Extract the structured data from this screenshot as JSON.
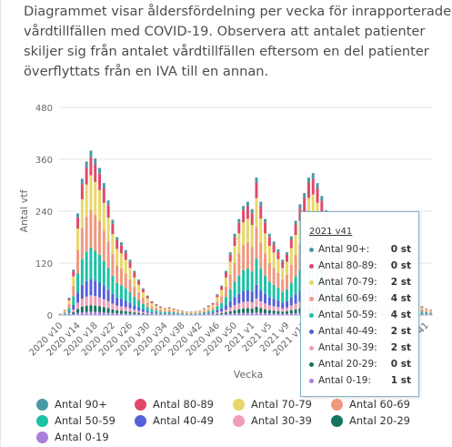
{
  "description": [
    "Diagrammet visar åldersfördelning per vecka för inrapporterade",
    "vårdtillfällen med COVID-19. Observera att antalet patienter",
    "skiljer sig från antalet vårdtillfällen eftersom en del patienter",
    "överflyttats från en IVA till en annan."
  ],
  "tooltip": {
    "title": "2021 v41",
    "rows": [
      {
        "label": "Antal 90+:",
        "value": "0 st",
        "color": "#4a9aa5"
      },
      {
        "label": "Antal 80-89:",
        "value": "0 st",
        "color": "#e0486b"
      },
      {
        "label": "Antal 70-79:",
        "value": "2 st",
        "color": "#e8d76a"
      },
      {
        "label": "Antal 60-69:",
        "value": "4 st",
        "color": "#f0987e"
      },
      {
        "label": "Antal 50-59:",
        "value": "4 st",
        "color": "#1bc2a5"
      },
      {
        "label": "Antal 40-49:",
        "value": "2 st",
        "color": "#5460d9"
      },
      {
        "label": "Antal 30-39:",
        "value": "2 st",
        "color": "#ee9eb7"
      },
      {
        "label": "Antal 20-29:",
        "value": "0 st",
        "color": "#16735e"
      },
      {
        "label": "Antal 0-19:",
        "value": "1 st",
        "color": "#a87fd9"
      }
    ]
  },
  "chart_data": {
    "type": "bar",
    "stacked": true,
    "title": "",
    "xlabel": "Vecka",
    "ylabel": "Antal vtf",
    "ylim": [
      0,
      480
    ],
    "yticks": [
      0,
      120,
      240,
      360,
      480
    ],
    "grid": true,
    "legend_position": "bottom",
    "x_tick_labels": [
      "2020 v10",
      "2020 v14",
      "2020 v18",
      "2020 v22",
      "2020 v26",
      "2020 v30",
      "2020 v34",
      "2020 v38",
      "2020 v42",
      "2020 v46",
      "2020 v50",
      "2021 v1",
      "2021 v5",
      "2021 v9",
      "2021 v13",
      "",
      "",
      "",
      "",
      "",
      "",
      "2021 v41"
    ],
    "categories": [
      "2020 v10",
      "2020 v11",
      "2020 v12",
      "2020 v13",
      "2020 v14",
      "2020 v15",
      "2020 v16",
      "2020 v17",
      "2020 v18",
      "2020 v19",
      "2020 v20",
      "2020 v21",
      "2020 v22",
      "2020 v23",
      "2020 v24",
      "2020 v25",
      "2020 v26",
      "2020 v27",
      "2020 v28",
      "2020 v29",
      "2020 v30",
      "2020 v31",
      "2020 v32",
      "2020 v33",
      "2020 v34",
      "2020 v35",
      "2020 v36",
      "2020 v37",
      "2020 v38",
      "2020 v39",
      "2020 v40",
      "2020 v41",
      "2020 v42",
      "2020 v43",
      "2020 v44",
      "2020 v45",
      "2020 v46",
      "2020 v47",
      "2020 v48",
      "2020 v49",
      "2020 v50",
      "2020 v51",
      "2020 v52",
      "2020 v53",
      "2021 v1",
      "2021 v2",
      "2021 v3",
      "2021 v4",
      "2021 v5",
      "2021 v6",
      "2021 v7",
      "2021 v8",
      "2021 v9",
      "2021 v10",
      "2021 v11",
      "2021 v12",
      "2021 v13",
      "2021 v14",
      "2021 v15",
      "2021 v16",
      "2021 v17",
      "2021 v18",
      "2021 v19",
      "2021 v20",
      "2021 v21",
      "2021 v22",
      "2021 v23",
      "2021 v24",
      "2021 v25",
      "2021 v26",
      "2021 v27",
      "2021 v28",
      "2021 v29",
      "2021 v30",
      "2021 v31",
      "2021 v32",
      "2021 v33",
      "2021 v34",
      "2021 v35",
      "2021 v36",
      "2021 v37",
      "2021 v38",
      "2021 v39",
      "2021 v40",
      "2021 v41",
      "2021 v42"
    ],
    "totals": [
      4,
      12,
      40,
      105,
      235,
      315,
      355,
      380,
      362,
      340,
      305,
      265,
      220,
      180,
      168,
      150,
      128,
      102,
      82,
      62,
      45,
      32,
      25,
      20,
      16,
      18,
      15,
      12,
      10,
      8,
      8,
      9,
      10,
      16,
      22,
      28,
      48,
      68,
      102,
      145,
      188,
      222,
      252,
      262,
      245,
      318,
      262,
      222,
      188,
      170,
      152,
      128,
      145,
      182,
      218,
      256,
      282,
      318,
      328,
      305,
      275,
      242,
      205,
      178,
      152,
      120,
      92,
      72,
      52,
      40,
      30,
      24,
      20,
      18,
      20,
      22,
      26,
      28,
      30,
      30,
      26,
      24,
      22,
      20,
      15,
      12
    ],
    "shares": {
      "90+": 0.04,
      "80-89": 0.11,
      "70-79": 0.21,
      "60-69": 0.23,
      "50-59": 0.19,
      "40-49": 0.1,
      "30-39": 0.06,
      "20-29": 0.04,
      "0-19": 0.02
    },
    "series": [
      {
        "name": "Antal 90+",
        "color": "#4a9aa5"
      },
      {
        "name": "Antal 80-89",
        "color": "#e0486b"
      },
      {
        "name": "Antal 70-79",
        "color": "#e8d76a"
      },
      {
        "name": "Antal 60-69",
        "color": "#f0987e"
      },
      {
        "name": "Antal 50-59",
        "color": "#1bc2a5"
      },
      {
        "name": "Antal 40-49",
        "color": "#5460d9"
      },
      {
        "name": "Antal 30-39",
        "color": "#ee9eb7"
      },
      {
        "name": "Antal 20-29",
        "color": "#16735e"
      },
      {
        "name": "Antal 0-19",
        "color": "#a87fd9"
      }
    ]
  }
}
